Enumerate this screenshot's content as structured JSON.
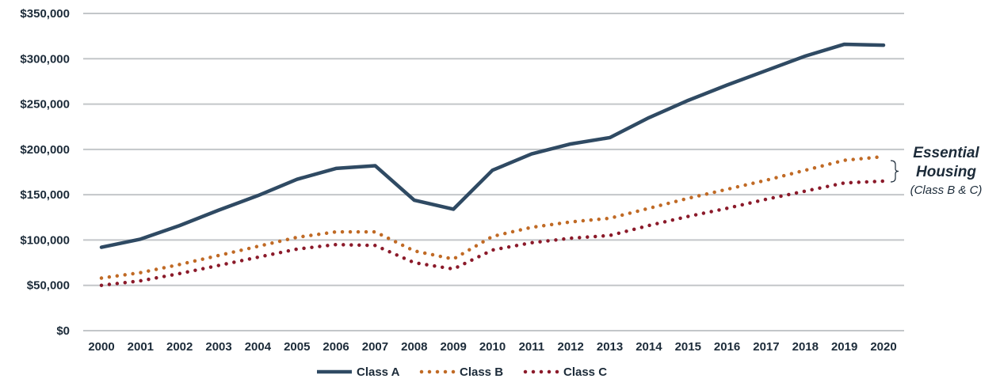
{
  "chart_data": {
    "type": "line",
    "x": [
      "2000",
      "2001",
      "2002",
      "2003",
      "2004",
      "2005",
      "2006",
      "2007",
      "2008",
      "2009",
      "2010",
      "2011",
      "2012",
      "2013",
      "2014",
      "2015",
      "2016",
      "2017",
      "2018",
      "2019",
      "2020"
    ],
    "ylim": [
      0,
      350000
    ],
    "yticks": [
      "$0",
      "$50,000",
      "$100,000",
      "$150,000",
      "$200,000",
      "$250,000",
      "$300,000",
      "$350,000"
    ],
    "grid": true,
    "legend_position": "bottom",
    "series": [
      {
        "name": "Class A",
        "style": "solid",
        "color": "#2f4a63",
        "values": [
          92000,
          101000,
          116000,
          133000,
          149000,
          167000,
          179000,
          182000,
          144000,
          134000,
          177000,
          195000,
          206000,
          213000,
          235000,
          254000,
          271000,
          287000,
          303000,
          316000,
          315000
        ]
      },
      {
        "name": "Class B",
        "style": "dotted",
        "color": "#c06a25",
        "values": [
          58000,
          64000,
          73000,
          83000,
          93000,
          103000,
          109000,
          109000,
          88000,
          79000,
          104000,
          114000,
          120000,
          124000,
          135000,
          146000,
          156000,
          166000,
          177000,
          188000,
          192000
        ]
      },
      {
        "name": "Class C",
        "style": "dotted",
        "color": "#8b1a2a",
        "values": [
          50000,
          55000,
          63000,
          72000,
          81000,
          90000,
          95000,
          94000,
          75000,
          68000,
          89000,
          97000,
          102000,
          105000,
          116000,
          126000,
          135000,
          145000,
          154000,
          163000,
          165000
        ]
      }
    ],
    "annotation": {
      "title_line1": "Essential",
      "title_line2": "Housing",
      "subtitle": "(Class B & C)"
    }
  }
}
